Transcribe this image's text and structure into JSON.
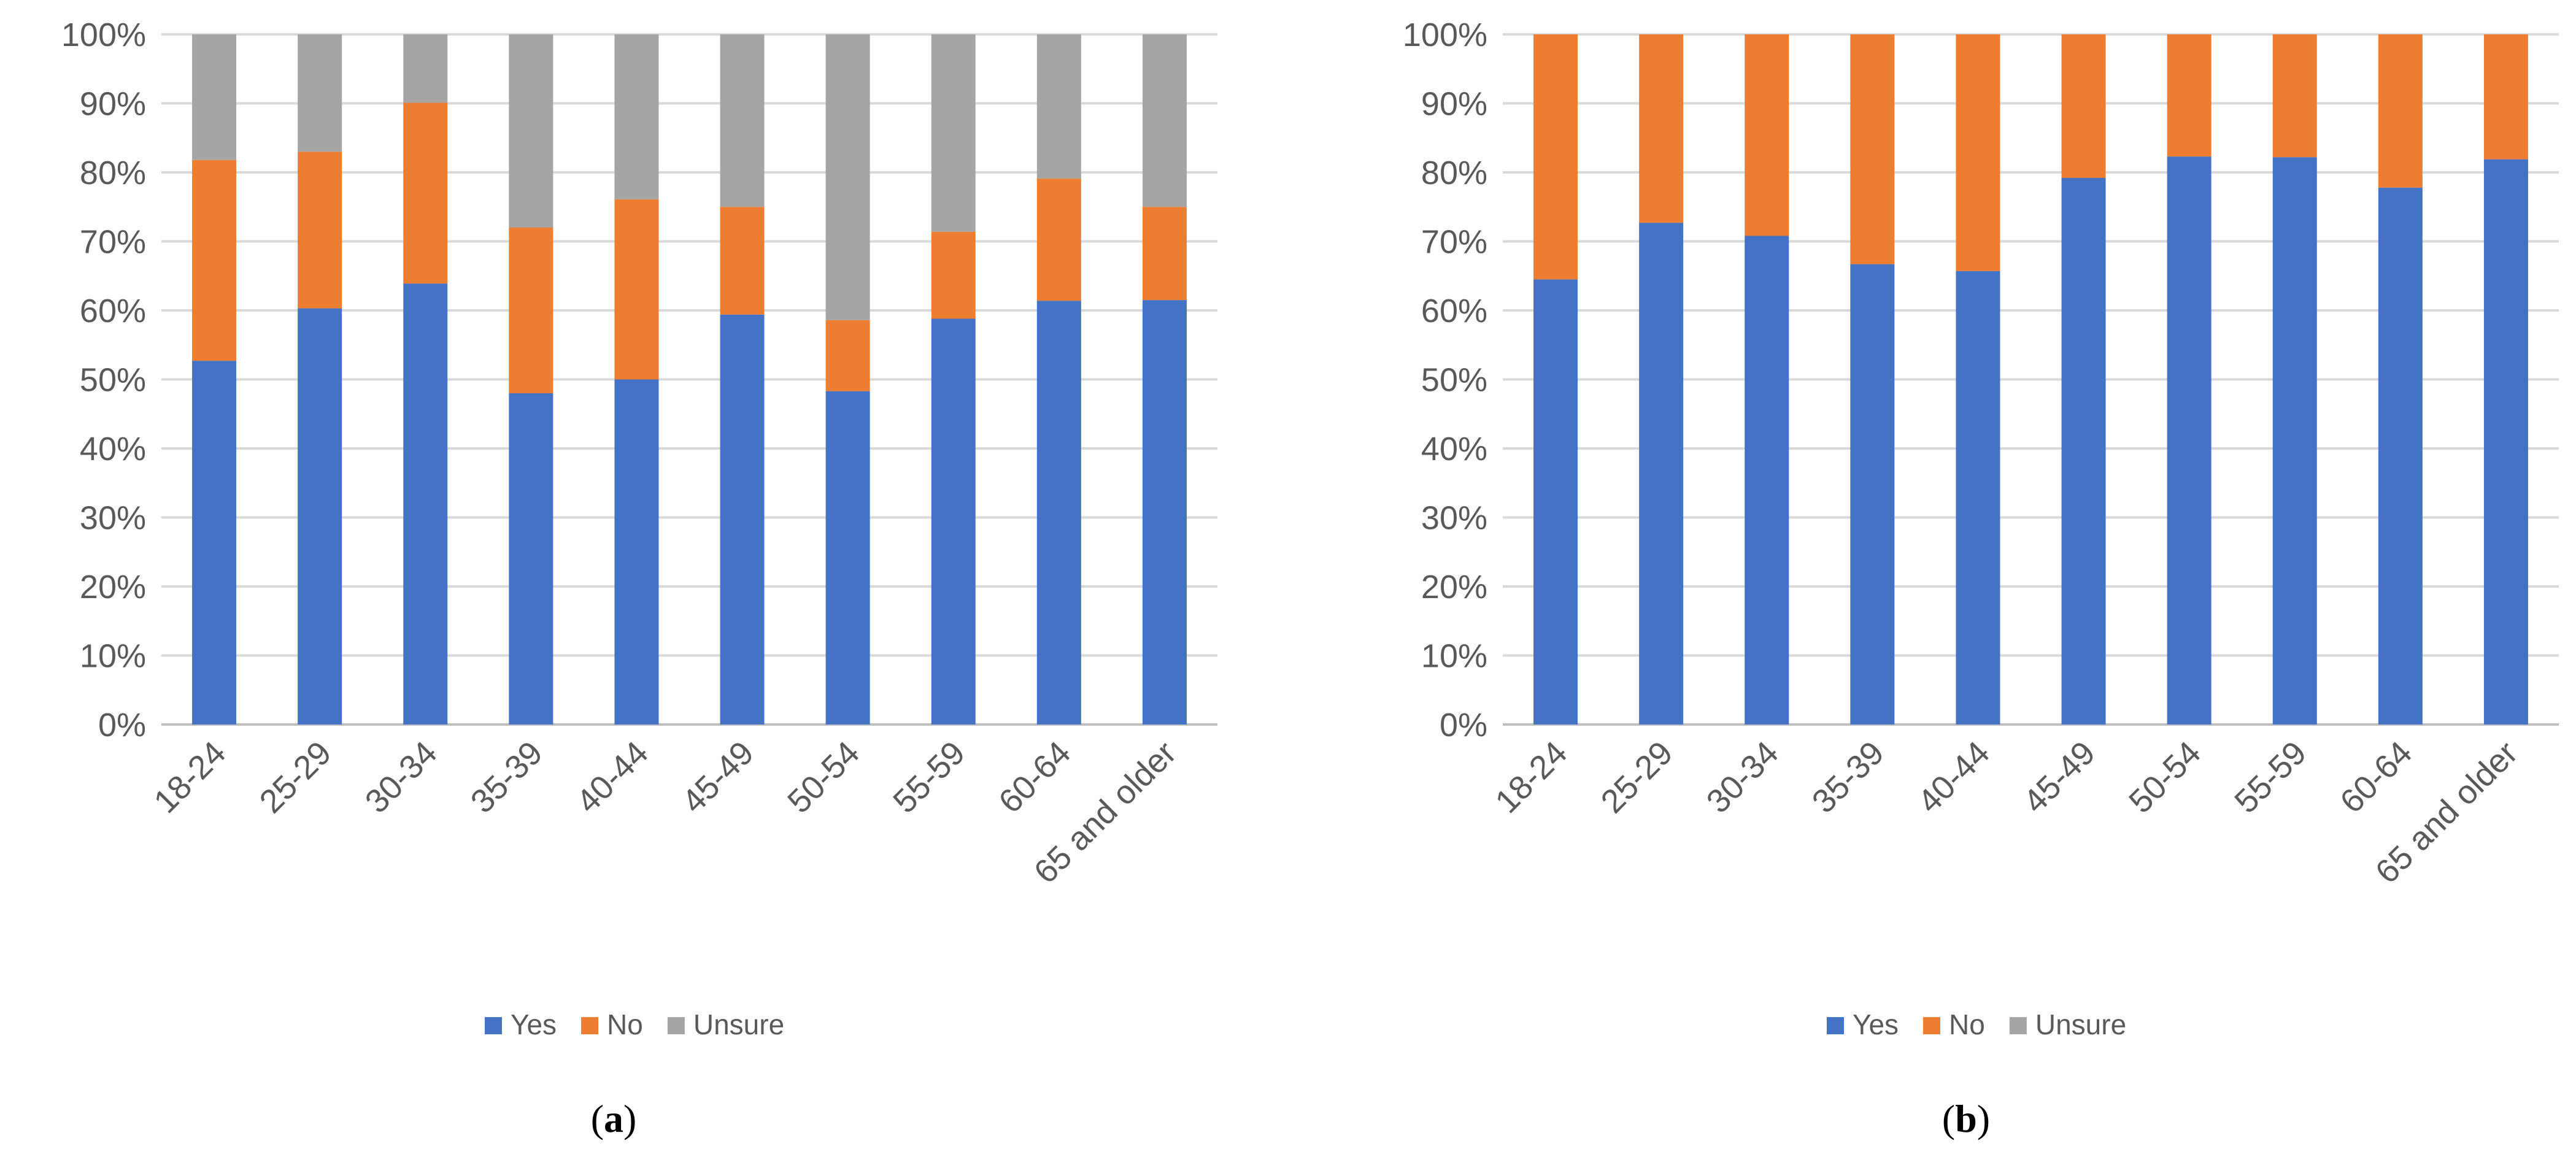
{
  "colors": {
    "yes": "#4472C4",
    "no": "#ED7D31",
    "unsure": "#A5A5A5",
    "grid": "#D9D9D9",
    "text": "#595959"
  },
  "chart_data": [
    {
      "id": "a",
      "type": "bar",
      "stacked": true,
      "panel_label": {
        "open": "(",
        "letter": "a",
        "close": ")"
      },
      "categories": [
        "18-24",
        "25-29",
        "30-34",
        "35-39",
        "40-44",
        "45-49",
        "50-54",
        "55-59",
        "60-64",
        "65 and older"
      ],
      "series": [
        {
          "name": "Yes",
          "color_key": "yes",
          "values": [
            52.7,
            60.3,
            63.9,
            48.0,
            50.0,
            59.4,
            48.3,
            58.8,
            61.4,
            61.5
          ]
        },
        {
          "name": "No",
          "color_key": "no",
          "values": [
            29.1,
            22.7,
            26.2,
            24.0,
            26.1,
            15.6,
            10.3,
            12.6,
            17.7,
            13.5
          ]
        },
        {
          "name": "Unsure",
          "color_key": "unsure",
          "values": [
            18.2,
            17.0,
            9.9,
            28.0,
            23.9,
            25.0,
            41.4,
            28.6,
            20.9,
            25.0
          ]
        }
      ],
      "ylim": [
        0,
        100
      ],
      "yticks": [
        "0%",
        "10%",
        "20%",
        "30%",
        "40%",
        "50%",
        "60%",
        "70%",
        "80%",
        "90%",
        "100%"
      ],
      "grid": true,
      "legend": "bottom",
      "legend_entries": [
        "Yes",
        "No",
        "Unsure"
      ]
    },
    {
      "id": "b",
      "type": "bar",
      "stacked": true,
      "panel_label": {
        "open": "(",
        "letter": "b",
        "close": ")"
      },
      "categories": [
        "18-24",
        "25-29",
        "30-34",
        "35-39",
        "40-44",
        "45-49",
        "50-54",
        "55-59",
        "60-64",
        "65 and older"
      ],
      "series": [
        {
          "name": "Yes",
          "color_key": "yes",
          "values": [
            64.5,
            72.7,
            70.8,
            66.7,
            65.7,
            79.2,
            82.3,
            82.2,
            77.8,
            81.9
          ]
        },
        {
          "name": "No",
          "color_key": "no",
          "values": [
            35.5,
            27.3,
            29.2,
            33.3,
            34.3,
            20.8,
            17.7,
            17.8,
            22.2,
            18.1
          ]
        },
        {
          "name": "Unsure",
          "color_key": "unsure",
          "values": [
            0,
            0,
            0,
            0,
            0,
            0,
            0,
            0,
            0,
            0
          ]
        }
      ],
      "ylim": [
        0,
        100
      ],
      "yticks": [
        "0%",
        "10%",
        "20%",
        "30%",
        "40%",
        "50%",
        "60%",
        "70%",
        "80%",
        "90%",
        "100%"
      ],
      "grid": true,
      "legend": "bottom",
      "legend_entries": [
        "Yes",
        "No",
        "Unsure"
      ]
    }
  ]
}
